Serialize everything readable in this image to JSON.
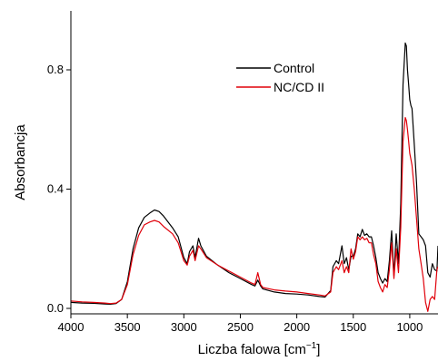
{
  "chart_data": {
    "type": "line",
    "xlabel": "Liczba falowa [cm",
    "xlabel_unit_sup": "−1",
    "xlabel_close": "]",
    "ylabel": "Absorbancja",
    "xlim": [
      4000,
      750
    ],
    "ylim": [
      -0.01,
      1.0
    ],
    "x_reversed": true,
    "grid": false,
    "legend_position": "top-right",
    "x_ticks": [
      4000,
      3500,
      3000,
      2500,
      2000,
      1500,
      1000
    ],
    "x_tick_labels": [
      "4000",
      "3500",
      "3000",
      "2500",
      "2000",
      "1500",
      "1000"
    ],
    "y_ticks": [
      0.0,
      0.4,
      0.8
    ],
    "y_tick_labels": [
      "0.0",
      "0.4",
      "0.8"
    ],
    "series": [
      {
        "name": "Control",
        "color": "#000000",
        "x": [
          4000,
          3900,
          3800,
          3700,
          3650,
          3600,
          3550,
          3500,
          3450,
          3400,
          3350,
          3300,
          3260,
          3220,
          3180,
          3100,
          3050,
          3000,
          2970,
          2950,
          2920,
          2900,
          2870,
          2850,
          2800,
          2700,
          2600,
          2500,
          2400,
          2370,
          2345,
          2320,
          2300,
          2200,
          2100,
          2000,
          1900,
          1800,
          1750,
          1700,
          1680,
          1650,
          1630,
          1600,
          1580,
          1560,
          1540,
          1520,
          1500,
          1480,
          1460,
          1440,
          1420,
          1400,
          1380,
          1360,
          1340,
          1320,
          1300,
          1280,
          1260,
          1240,
          1220,
          1200,
          1180,
          1160,
          1140,
          1120,
          1100,
          1080,
          1060,
          1040,
          1030,
          1020,
          1010,
          1000,
          990,
          980,
          960,
          940,
          920,
          900,
          880,
          860,
          840,
          820,
          800,
          780,
          760,
          750
        ],
        "y": [
          0.02,
          0.018,
          0.017,
          0.015,
          0.014,
          0.016,
          0.03,
          0.09,
          0.2,
          0.27,
          0.305,
          0.32,
          0.33,
          0.325,
          0.31,
          0.27,
          0.24,
          0.17,
          0.15,
          0.19,
          0.21,
          0.17,
          0.235,
          0.21,
          0.175,
          0.145,
          0.12,
          0.1,
          0.08,
          0.075,
          0.095,
          0.075,
          0.065,
          0.055,
          0.05,
          0.048,
          0.045,
          0.04,
          0.038,
          0.06,
          0.14,
          0.16,
          0.15,
          0.21,
          0.15,
          0.17,
          0.13,
          0.175,
          0.175,
          0.2,
          0.25,
          0.24,
          0.265,
          0.245,
          0.25,
          0.24,
          0.24,
          0.21,
          0.17,
          0.12,
          0.1,
          0.085,
          0.1,
          0.09,
          0.16,
          0.26,
          0.11,
          0.25,
          0.15,
          0.35,
          0.75,
          0.89,
          0.88,
          0.8,
          0.75,
          0.7,
          0.68,
          0.67,
          0.55,
          0.42,
          0.25,
          0.24,
          0.23,
          0.21,
          0.12,
          0.105,
          0.15,
          0.13,
          0.125,
          0.21
        ]
      },
      {
        "name": "NC/CD II",
        "color": "#e0000a",
        "x": [
          4000,
          3900,
          3800,
          3700,
          3650,
          3600,
          3550,
          3500,
          3450,
          3400,
          3350,
          3300,
          3260,
          3220,
          3180,
          3100,
          3050,
          3000,
          2970,
          2950,
          2920,
          2900,
          2870,
          2850,
          2800,
          2700,
          2600,
          2500,
          2400,
          2370,
          2345,
          2320,
          2300,
          2200,
          2100,
          2000,
          1900,
          1800,
          1750,
          1700,
          1680,
          1650,
          1630,
          1600,
          1580,
          1560,
          1540,
          1520,
          1500,
          1480,
          1460,
          1440,
          1420,
          1400,
          1380,
          1360,
          1340,
          1320,
          1300,
          1280,
          1260,
          1240,
          1220,
          1200,
          1180,
          1160,
          1140,
          1120,
          1100,
          1080,
          1060,
          1040,
          1030,
          1020,
          1010,
          1000,
          990,
          980,
          960,
          940,
          920,
          900,
          880,
          860,
          840,
          820,
          800,
          780,
          760,
          750
        ],
        "y": [
          0.025,
          0.022,
          0.02,
          0.018,
          0.016,
          0.018,
          0.03,
          0.08,
          0.18,
          0.245,
          0.28,
          0.29,
          0.295,
          0.29,
          0.275,
          0.25,
          0.22,
          0.16,
          0.145,
          0.175,
          0.195,
          0.16,
          0.21,
          0.2,
          0.17,
          0.145,
          0.125,
          0.105,
          0.085,
          0.08,
          0.12,
          0.08,
          0.07,
          0.062,
          0.058,
          0.055,
          0.05,
          0.045,
          0.042,
          0.055,
          0.12,
          0.14,
          0.13,
          0.16,
          0.12,
          0.14,
          0.12,
          0.2,
          0.165,
          0.19,
          0.24,
          0.23,
          0.24,
          0.23,
          0.235,
          0.22,
          0.22,
          0.18,
          0.15,
          0.09,
          0.07,
          0.055,
          0.08,
          0.07,
          0.13,
          0.22,
          0.1,
          0.2,
          0.12,
          0.27,
          0.56,
          0.64,
          0.63,
          0.6,
          0.56,
          0.52,
          0.5,
          0.48,
          0.4,
          0.3,
          0.2,
          0.15,
          0.1,
          0.02,
          -0.01,
          0.03,
          0.04,
          0.03,
          0.13,
          0.14
        ]
      }
    ]
  }
}
